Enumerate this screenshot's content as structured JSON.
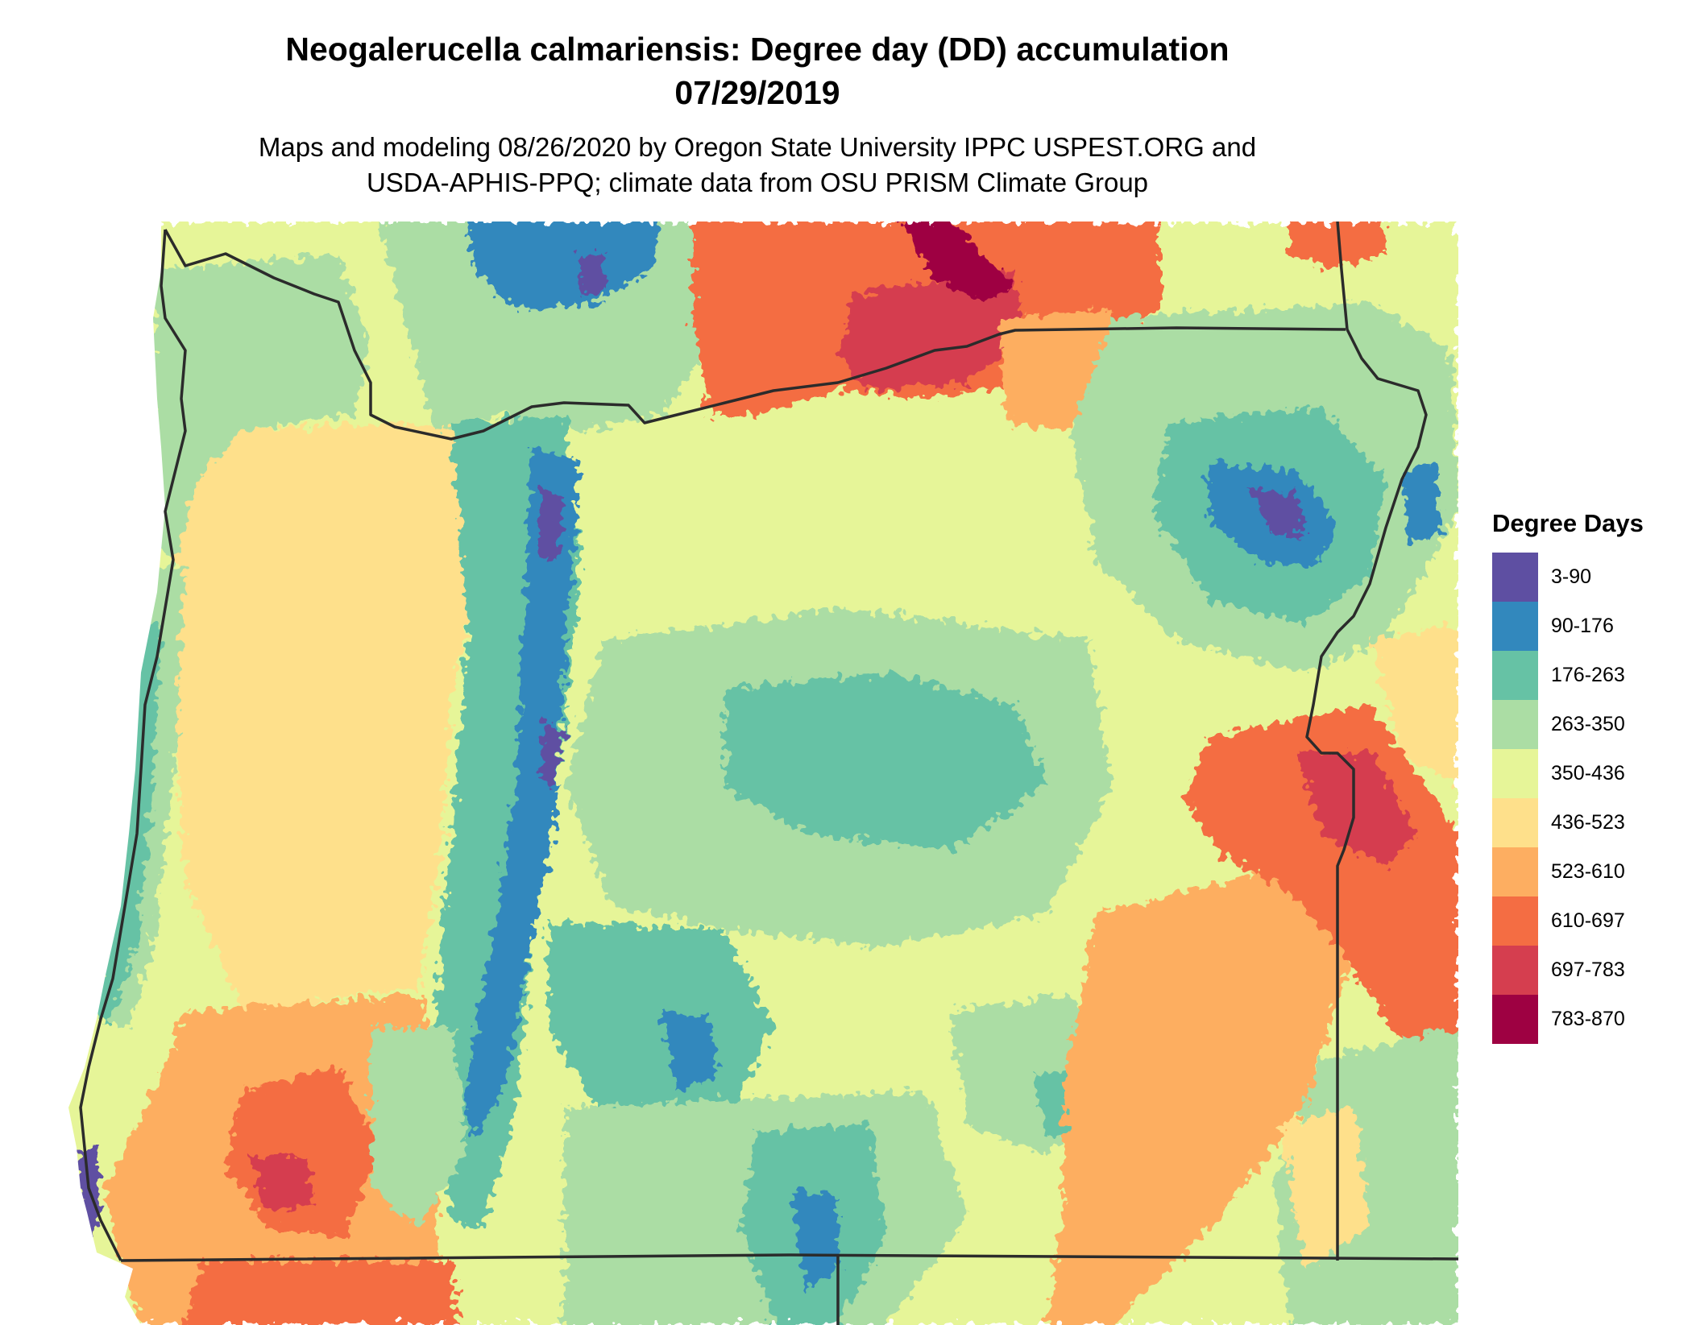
{
  "title": "Neogalerucella calmariensis: Degree day (DD) accumulation",
  "date": "07/29/2019",
  "subtitle_line1": "Maps and modeling 08/26/2020 by Oregon State University IPPC USPEST.ORG and",
  "subtitle_line2": "USDA-APHIS-PPQ; climate data from OSU PRISM Climate Group",
  "legend": {
    "title": "Degree Days",
    "items": [
      {
        "label": "3-90",
        "color": "#5e4fa2"
      },
      {
        "label": "90-176",
        "color": "#3288bd"
      },
      {
        "label": "176-263",
        "color": "#66c2a5"
      },
      {
        "label": "263-350",
        "color": "#abdda4"
      },
      {
        "label": "350-436",
        "color": "#e6f598"
      },
      {
        "label": "436-523",
        "color": "#fee08b"
      },
      {
        "label": "523-610",
        "color": "#fdae61"
      },
      {
        "label": "610-697",
        "color": "#f46d43"
      },
      {
        "label": "697-783",
        "color": "#d53e4f"
      },
      {
        "label": "783-870",
        "color": "#9e0142"
      }
    ]
  }
}
